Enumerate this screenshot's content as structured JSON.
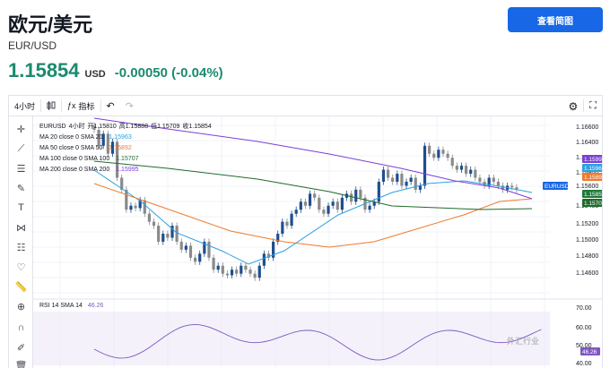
{
  "header": {
    "title": "欧元/美元",
    "subtitle": "EUR/USD",
    "price": "1.15854",
    "currency": "USD",
    "change": "-0.00050 (-0.04%)",
    "view_button": "查看简图"
  },
  "toolbar": {
    "interval": "4小时",
    "indicators_label": "指标"
  },
  "legend": {
    "symbol": "EURUSD",
    "interval": "4小时",
    "open_label": "开",
    "open": "1.15810",
    "high_label": "高",
    "high": "1.15888",
    "low_label": "低",
    "low": "1.15709",
    "close_label": "收",
    "close": "1.15854",
    "ma": [
      {
        "label": "MA 20 close 0 SMA 20",
        "value": "1.15963",
        "color": "#2ca0e0"
      },
      {
        "label": "MA 50 close 0 SMA 50",
        "value": "1.15892",
        "color": "#f07a2a"
      },
      {
        "label": "MA 100 close 0 SMA 100",
        "value": "1.15707",
        "color": "#1f6b2c"
      },
      {
        "label": "MA 200 close 0 SMA 200",
        "value": "1.15995",
        "color": "#7b3fd6"
      }
    ]
  },
  "rsi": {
    "label": "RSI 14 SMA 14",
    "value": "46.26",
    "axis": [
      "70.00",
      "60.00",
      "50.00",
      "40.00"
    ],
    "current": "46.26"
  },
  "price_axis": [
    "1.16600",
    "1.16400",
    "1.16000",
    "1.15800",
    "1.15600",
    "1.15400",
    "1.15200",
    "1.15000",
    "1.14800",
    "1.14600"
  ],
  "price_tags": [
    {
      "value": "1.15995",
      "color": "#7b3fd6"
    },
    {
      "value": "1.15963",
      "color": "#2ca0e0"
    },
    {
      "value": "1.15892",
      "color": "#f07a2a"
    },
    {
      "value": "EURUSD",
      "color": "#1767e6"
    },
    {
      "value": "1.15854",
      "color": "#1f7a3a"
    },
    {
      "value": "1.15707",
      "color": "#1f6b2c"
    }
  ],
  "watermark": "外汇行业"
}
